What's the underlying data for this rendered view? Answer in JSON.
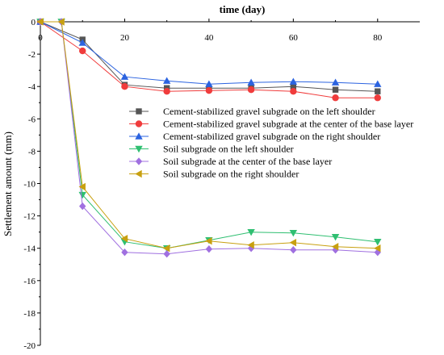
{
  "chart_data": {
    "type": "line",
    "title": "",
    "xlabel": "time (day)",
    "ylabel": "Settlement amount (mm)",
    "x_axis_position": "top",
    "xlim": [
      0,
      90
    ],
    "ylim": [
      -20,
      0
    ],
    "x_ticks": [
      0,
      20,
      40,
      60,
      80
    ],
    "y_ticks": [
      0,
      -2,
      -4,
      -6,
      -8,
      -10,
      -12,
      -14,
      -16,
      -18,
      -20
    ],
    "legend_position": "center-right",
    "grid": false,
    "series": [
      {
        "name": "Cement-stabilized gravel subgrade on the left shoulder",
        "marker": "square",
        "color": "#555555",
        "x": [
          0,
          10,
          20,
          30,
          40,
          50,
          60,
          70,
          80
        ],
        "y": [
          0,
          -1.1,
          -3.9,
          -4.1,
          -4.1,
          -4.1,
          -4.0,
          -4.2,
          -4.3
        ]
      },
      {
        "name": "Cement-stabilized gravel subgrade at the center of the base layer",
        "marker": "circle",
        "color": "#f03c3c",
        "x": [
          0,
          10,
          20,
          30,
          40,
          50,
          60,
          70,
          80
        ],
        "y": [
          0,
          -1.8,
          -4.0,
          -4.3,
          -4.25,
          -4.2,
          -4.3,
          -4.7,
          -4.7
        ]
      },
      {
        "name": "Cement-stabilized gravel subgrade on the right shoulder",
        "marker": "triangle-up",
        "color": "#2b63e0",
        "x": [
          0,
          10,
          20,
          30,
          40,
          50,
          60,
          70,
          80
        ],
        "y": [
          0,
          -1.3,
          -3.4,
          -3.65,
          -3.85,
          -3.75,
          -3.7,
          -3.75,
          -3.85
        ]
      },
      {
        "name": "Soil subgrade on the left shoulder",
        "marker": "triangle-down",
        "color": "#2fbf71",
        "x": [
          0,
          5,
          10,
          20,
          30,
          40,
          50,
          60,
          70,
          80
        ],
        "y": [
          0,
          0,
          -10.7,
          -13.6,
          -14.0,
          -13.5,
          -13.0,
          -13.05,
          -13.3,
          -13.6
        ]
      },
      {
        "name": "Soil subgrade at the center of the base layer",
        "marker": "diamond",
        "color": "#a070e0",
        "x": [
          0,
          5,
          10,
          20,
          30,
          40,
          50,
          60,
          70,
          80
        ],
        "y": [
          0,
          0,
          -11.4,
          -14.25,
          -14.35,
          -14.05,
          -14.0,
          -14.1,
          -14.1,
          -14.25
        ]
      },
      {
        "name": "Soil subgrade on the right shoulder",
        "marker": "triangle-left",
        "color": "#c8a010",
        "x": [
          0,
          5,
          10,
          20,
          30,
          40,
          50,
          60,
          70,
          80
        ],
        "y": [
          0,
          0,
          -10.2,
          -13.4,
          -14.0,
          -13.55,
          -13.8,
          -13.65,
          -13.9,
          -14.0
        ]
      }
    ]
  }
}
